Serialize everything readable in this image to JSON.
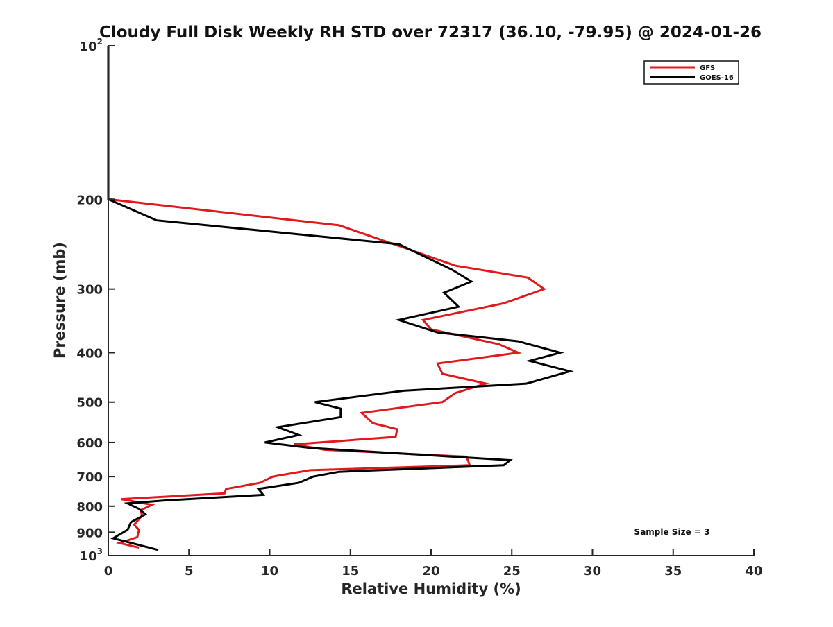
{
  "chart_data": {
    "type": "line",
    "title": "Cloudy Full Disk Weekly RH STD over 72317 (36.10, -79.95) @ 2024-01-26",
    "xlabel": "Relative Humidity (%)",
    "ylabel": "Pressure (mb)",
    "xlim": [
      0,
      40
    ],
    "ylim": [
      100,
      1000
    ],
    "yscale": "log",
    "y_reversed": true,
    "grid": false,
    "legend_position": "top-right",
    "x_ticks": [
      0,
      5,
      10,
      15,
      20,
      25,
      30,
      35,
      40
    ],
    "y_ticks": [
      {
        "value": 100,
        "base": "10",
        "exp": "2"
      },
      {
        "value": 200,
        "label": "200"
      },
      {
        "value": 300,
        "label": "300"
      },
      {
        "value": 400,
        "label": "400"
      },
      {
        "value": 500,
        "label": "500"
      },
      {
        "value": 600,
        "label": "600"
      },
      {
        "value": 700,
        "label": "700"
      },
      {
        "value": 800,
        "label": "800"
      },
      {
        "value": 900,
        "label": "900"
      },
      {
        "value": 1000,
        "base": "10",
        "exp": "3"
      }
    ],
    "annotation": "Sample Size = 3",
    "series": [
      {
        "name": "GFS",
        "color": "#e0191b",
        "points": [
          [
            0,
            100
          ],
          [
            0,
            150
          ],
          [
            0,
            200
          ],
          [
            14.3,
            225
          ],
          [
            18.5,
            250
          ],
          [
            21.5,
            270
          ],
          [
            26,
            285
          ],
          [
            27,
            300
          ],
          [
            24.5,
            320
          ],
          [
            19.5,
            345
          ],
          [
            20,
            360
          ],
          [
            24.2,
            385
          ],
          [
            25.4,
            400
          ],
          [
            20.4,
            420
          ],
          [
            20.7,
            440
          ],
          [
            23.4,
            460
          ],
          [
            21.5,
            480
          ],
          [
            20.7,
            500
          ],
          [
            15.7,
            525
          ],
          [
            16.4,
            550
          ],
          [
            17.9,
            565
          ],
          [
            17.8,
            585
          ],
          [
            11.5,
            605
          ],
          [
            13.4,
            620
          ],
          [
            22.2,
            640
          ],
          [
            22.4,
            665
          ],
          [
            12.5,
            680
          ],
          [
            10.2,
            700
          ],
          [
            9.4,
            720
          ],
          [
            7.3,
            740
          ],
          [
            7.2,
            755
          ],
          [
            0.8,
            775
          ],
          [
            2.7,
            795
          ],
          [
            2.0,
            815
          ],
          [
            2.1,
            835
          ],
          [
            1.6,
            870
          ],
          [
            1.9,
            890
          ],
          [
            1.8,
            920
          ],
          [
            0.7,
            945
          ],
          [
            1.9,
            965
          ]
        ]
      },
      {
        "name": "GOES-16",
        "color": "#000000",
        "points": [
          [
            0,
            100
          ],
          [
            0,
            150
          ],
          [
            0,
            200
          ],
          [
            3.0,
            220
          ],
          [
            18.0,
            245
          ],
          [
            21.3,
            275
          ],
          [
            22.5,
            290
          ],
          [
            20.8,
            305
          ],
          [
            21.7,
            325
          ],
          [
            18.0,
            345
          ],
          [
            20.4,
            365
          ],
          [
            25.4,
            380
          ],
          [
            28.0,
            400
          ],
          [
            26.1,
            415
          ],
          [
            28.6,
            435
          ],
          [
            25.9,
            460
          ],
          [
            18.3,
            475
          ],
          [
            12.8,
            500
          ],
          [
            14.4,
            515
          ],
          [
            14.4,
            535
          ],
          [
            10.5,
            560
          ],
          [
            11.8,
            580
          ],
          [
            9.7,
            600
          ],
          [
            12.5,
            615
          ],
          [
            24.9,
            650
          ],
          [
            24.5,
            665
          ],
          [
            14.3,
            685
          ],
          [
            12.7,
            700
          ],
          [
            11.8,
            720
          ],
          [
            9.3,
            740
          ],
          [
            9.6,
            760
          ],
          [
            3.4,
            780
          ],
          [
            1.2,
            790
          ],
          [
            1.9,
            810
          ],
          [
            2.3,
            830
          ],
          [
            1.4,
            860
          ],
          [
            1.2,
            890
          ],
          [
            0.3,
            925
          ],
          [
            3.1,
            975
          ]
        ]
      }
    ]
  }
}
